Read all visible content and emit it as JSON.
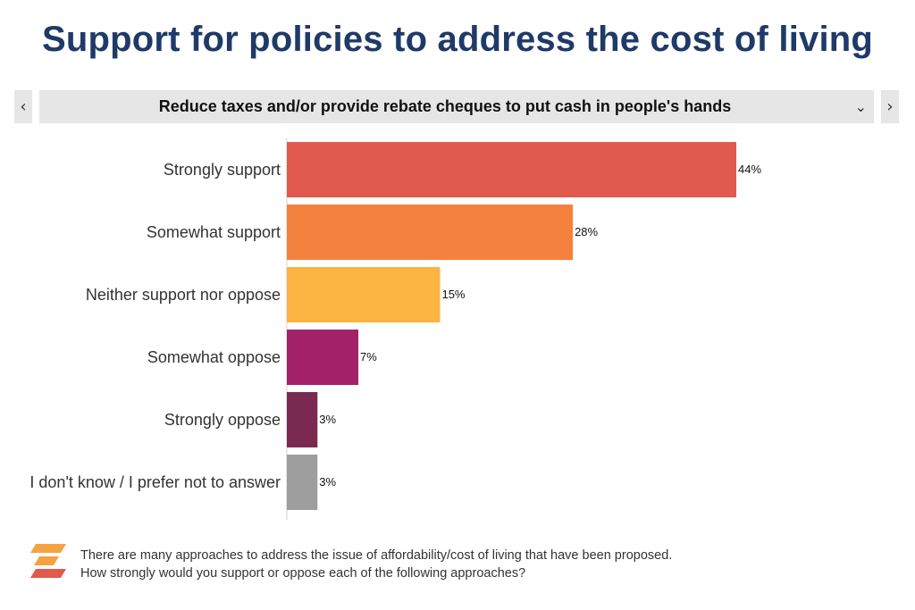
{
  "title": "Support for policies to address the cost of living",
  "selector": {
    "selected": "Reduce taxes and/or provide rebate cheques to put cash in people's hands",
    "prev_icon": "chevron-left-icon",
    "next_icon": "chevron-right-icon",
    "dropdown_icon": "chevron-down-icon"
  },
  "chart_data": {
    "type": "bar",
    "orientation": "horizontal",
    "categories": [
      "Strongly support",
      "Somewhat support",
      "Neither support nor oppose",
      "Somewhat oppose",
      "Strongly oppose",
      "I don't know / I prefer not to answer"
    ],
    "values": [
      44,
      28,
      15,
      7,
      3,
      3
    ],
    "value_labels": [
      "44%",
      "28%",
      "15%",
      "7%",
      "3%",
      "3%"
    ],
    "colors": [
      "#e05a4e",
      "#f5813e",
      "#fbb341",
      "#a32167",
      "#7a2a50",
      "#9e9e9e"
    ],
    "xlim": [
      0,
      50
    ],
    "grid": false,
    "legend": "none"
  },
  "footer": {
    "line1": "There are many approaches to address the issue of affordability/cost of living that have been proposed.",
    "line2": "How strongly would you support or oppose each of the following approaches?",
    "logo_colors": [
      "#f5a341",
      "#e05a4e"
    ]
  }
}
